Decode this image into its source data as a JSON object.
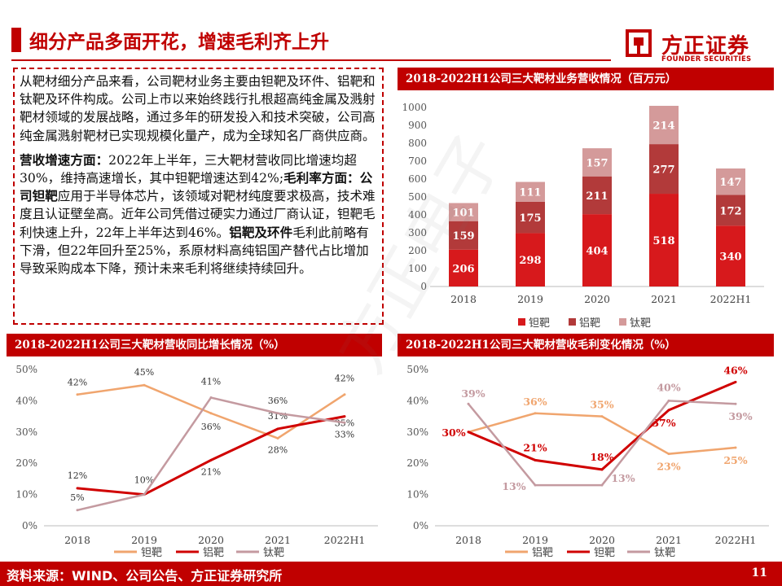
{
  "header": {
    "title": "细分产品多面开花，增速毛利齐上升",
    "logo_cn": "方正证券",
    "logo_en": "FOUNDER SECURITIES"
  },
  "text": {
    "para1": "从靶材细分产品来看，公司靶材业务主要由钽靶及环件、铝靶和钛靶及环件构成。公司上市以来始终践行扎根超高纯金属及溅射靶材领域的发展战略，通过多年的研发投入和技术突破，公司高纯金属溅射靶材已实现规模化量产，成为全球知名厂商供应商。",
    "p2_h1": "营收增速方面：",
    "p2_t1": "2022年上半年，三大靶材营收同比增速均超30%，维持高速增长，其中钽靶增速达到42%;",
    "p2_h2": "毛利率方面：公司钽靶",
    "p2_t2": "应用于半导体芯片，该领域对靶材纯度要求极高，技术难度且认证壁垒高。近年公司凭借过硬实力通过厂商认证，钽靶毛利快速上升，22年上半年达到46%。",
    "p2_h3": "铝靶及环件",
    "p2_t3": "毛利此前略有下滑，但22年回升至25%，系原材料高纯铝国产替代占比增加导致采购成本下降，预计未来毛利将继续持续回升。"
  },
  "panels": {
    "revenue_title": "2018-2022H1公司三大靶材业务营收情况（百万元）",
    "growth_title": "2018-2022H1公司三大靶材营收同比增长情况（%）",
    "margin_title": "2018-2022H1公司三大靶材营收毛利变化情况（%）"
  },
  "chart_data": [
    {
      "id": "revenue",
      "type": "bar",
      "stacked": true,
      "title": "2018-2022H1公司三大靶材业务营收情况（百万元）",
      "categories": [
        "2018",
        "2019",
        "2020",
        "2021",
        "2022H1"
      ],
      "ylim": [
        0,
        1000
      ],
      "yticks": [
        0,
        100,
        200,
        300,
        400,
        500,
        600,
        700,
        800,
        900,
        1000
      ],
      "series": [
        {
          "name": "钽靶",
          "color": "#d7191c",
          "values": [
            206,
            298,
            404,
            518,
            340
          ]
        },
        {
          "name": "铝靶",
          "color": "#b23a3a",
          "values": [
            159,
            175,
            211,
            277,
            172
          ]
        },
        {
          "name": "钛靶",
          "color": "#d49a9a",
          "values": [
            101,
            111,
            157,
            214,
            147
          ]
        }
      ],
      "legend": "bottom"
    },
    {
      "id": "growth",
      "type": "line",
      "title": "2018-2022H1公司三大靶材营收同比增长情况（%）",
      "categories": [
        "2018",
        "2019",
        "2020",
        "2021",
        "2022H1"
      ],
      "ylim": [
        0,
        50
      ],
      "yticks": [
        0,
        10,
        20,
        30,
        40,
        50
      ],
      "tick_suffix": "%",
      "series": [
        {
          "name": "钽靶",
          "color": "#f0a56e",
          "values": [
            42,
            45,
            36,
            28,
            42
          ],
          "labels": [
            "42%",
            "45%",
            "36%",
            "28%",
            "42%"
          ]
        },
        {
          "name": "铝靶",
          "color": "#d00000",
          "values": [
            12,
            10,
            21,
            31,
            35
          ],
          "labels": [
            "12%",
            "10%",
            "21%",
            "31%",
            "35%"
          ]
        },
        {
          "name": "钛靶",
          "color": "#c49aa0",
          "values": [
            5,
            10,
            41,
            36,
            33
          ],
          "labels": [
            "5%",
            "",
            "41%",
            "36%",
            "33%"
          ]
        }
      ],
      "legend": "bottom"
    },
    {
      "id": "margin",
      "type": "line",
      "title": "2018-2022H1公司三大靶材营收毛利变化情况（%）",
      "categories": [
        "2018",
        "2019",
        "2020",
        "2021",
        "2022H1"
      ],
      "ylim": [
        0,
        50
      ],
      "yticks": [
        0,
        10,
        20,
        30,
        40,
        50
      ],
      "tick_suffix": "%",
      "series": [
        {
          "name": "铝靶",
          "color": "#f0a56e",
          "values": [
            30,
            36,
            35,
            23,
            25
          ],
          "labels": [
            "",
            "36%",
            "35%",
            "23%",
            "25%"
          ]
        },
        {
          "name": "钽靶",
          "color": "#d00000",
          "values": [
            30,
            21,
            18,
            37,
            46
          ],
          "labels": [
            "30%",
            "21%",
            "18%",
            "37%",
            "46%"
          ]
        },
        {
          "name": "钛靶",
          "color": "#c49aa0",
          "values": [
            39,
            13,
            13,
            40,
            39
          ],
          "labels": [
            "39%",
            "13%",
            "13%",
            "40%",
            "39%"
          ]
        }
      ],
      "legend": "bottom"
    }
  ],
  "footer": {
    "source": "资料来源：WIND、公司公告、方正证券研究所",
    "page": "11"
  }
}
